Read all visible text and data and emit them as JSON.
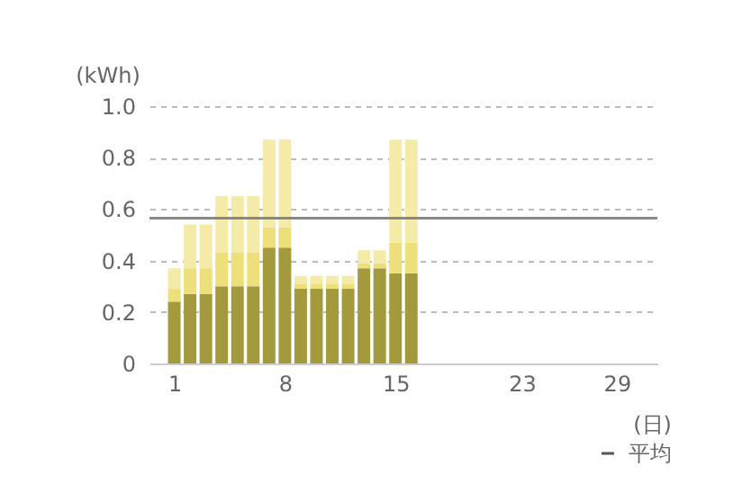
{
  "chart_data": {
    "type": "bar",
    "stacked": true,
    "ylabel": "(kWh)",
    "xlabel": "(日)",
    "x": [
      1,
      2,
      3,
      4,
      5,
      6,
      7,
      8,
      9,
      10,
      11,
      12,
      13,
      14,
      15,
      16
    ],
    "series": [
      {
        "color": "#a39a3e",
        "values": [
          0.24,
          0.27,
          0.27,
          0.3,
          0.3,
          0.3,
          0.45,
          0.45,
          0.29,
          0.29,
          0.29,
          0.29,
          0.37,
          0.37,
          0.35,
          0.35
        ]
      },
      {
        "color": "#ede07a",
        "values": [
          0.05,
          0.1,
          0.1,
          0.13,
          0.13,
          0.13,
          0.08,
          0.08,
          0.02,
          0.02,
          0.02,
          0.02,
          0.02,
          0.02,
          0.12,
          0.12
        ]
      },
      {
        "color": "#f5eba8",
        "values": [
          0.08,
          0.17,
          0.17,
          0.22,
          0.22,
          0.22,
          0.34,
          0.34,
          0.03,
          0.03,
          0.03,
          0.03,
          0.05,
          0.05,
          0.4,
          0.4
        ]
      }
    ],
    "xlim": [
      0,
      31
    ],
    "xticks": [
      1,
      8,
      15,
      23,
      29
    ],
    "ylim": [
      0,
      1.0
    ],
    "yticks": [
      {
        "value": 0,
        "label": "0"
      },
      0.2,
      0.4,
      0.6,
      0.8,
      {
        "value": 1.0,
        "label": "1.0"
      }
    ],
    "grid": "y",
    "ref_lines": [
      {
        "axis": "y",
        "value": 0.565,
        "label": "平均",
        "color": "#888888"
      }
    ]
  }
}
